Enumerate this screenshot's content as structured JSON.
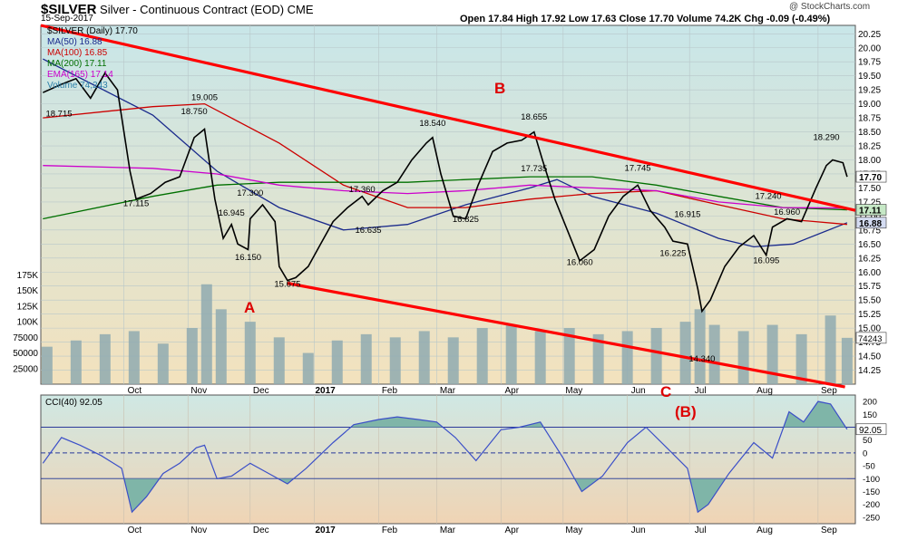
{
  "header": {
    "symbol": "$SILVER",
    "name": "Silver - Continuous Contract (EOD) CME",
    "date": "15-Sep-2017",
    "ohlc": "Open 17.84  High 17.92  Low 17.63  Close 17.70  Volume 74.2K  Chg -0.09 (-0.49%)",
    "copyright": "@ StockCharts.com"
  },
  "legend": [
    {
      "text": "$SILVER (Daily) 17.70",
      "color": "#000000"
    },
    {
      "text": "MA(50) 16.88",
      "color": "#1a2a8c"
    },
    {
      "text": "MA(100) 16.85",
      "color": "#cc0000"
    },
    {
      "text": "MA(200) 17.11",
      "color": "#007000"
    },
    {
      "text": "EMA(165) 17.14",
      "color": "#cc00cc"
    },
    {
      "text": "Volume 74,243",
      "color": "#2d7fa8"
    }
  ],
  "cci_legend": "CCI(40) 92.05",
  "annotations": {
    "B": "B",
    "A": "A",
    "C": "C",
    "Bparen": "(B)"
  },
  "price_labels": [
    {
      "text": "18.715",
      "x": "2016-08-30",
      "y": 18.715
    },
    {
      "text": "19.005",
      "x": "2016-11-09",
      "y": 19.005
    },
    {
      "text": "18.750",
      "x": "2016-11-04",
      "y": 18.75
    },
    {
      "text": "17.115",
      "x": "2016-10-07",
      "y": 17.115
    },
    {
      "text": "16.945",
      "x": "2016-11-22",
      "y": 16.945
    },
    {
      "text": "17.300",
      "x": "2016-12-01",
      "y": 17.3
    },
    {
      "text": "16.150",
      "x": "2016-11-30",
      "y": 16.15
    },
    {
      "text": "15.675",
      "x": "2016-12-19",
      "y": 15.675
    },
    {
      "text": "17.360",
      "x": "2017-01-24",
      "y": 17.36
    },
    {
      "text": "16.635",
      "x": "2017-01-27",
      "y": 16.635
    },
    {
      "text": "18.540",
      "x": "2017-02-27",
      "y": 18.54
    },
    {
      "text": "16.825",
      "x": "2017-03-15",
      "y": 16.825
    },
    {
      "text": "18.655",
      "x": "2017-04-17",
      "y": 18.655
    },
    {
      "text": "17.735",
      "x": "2017-04-17",
      "y": 17.735
    },
    {
      "text": "16.060",
      "x": "2017-05-09",
      "y": 16.06
    },
    {
      "text": "17.745",
      "x": "2017-06-06",
      "y": 17.745
    },
    {
      "text": "16.915",
      "x": "2017-06-30",
      "y": 16.915
    },
    {
      "text": "16.225",
      "x": "2017-06-23",
      "y": 16.225
    },
    {
      "text": "14.340",
      "x": "2017-07-07",
      "y": 14.34
    },
    {
      "text": "17.240",
      "x": "2017-08-08",
      "y": 17.24
    },
    {
      "text": "16.960",
      "x": "2017-08-17",
      "y": 16.96
    },
    {
      "text": "16.095",
      "x": "2017-08-07",
      "y": 16.095
    },
    {
      "text": "18.290",
      "x": "2017-09-05",
      "y": 18.29
    }
  ],
  "axis_boxes": [
    {
      "text": "17.70",
      "y": 17.7,
      "bg": "#ffffff",
      "fg": "#000000"
    },
    {
      "text": "17.11",
      "y": 17.11,
      "bg": "#c6e8c6",
      "fg": "#000000"
    },
    {
      "text": "16.88",
      "y": 16.88,
      "bg": "#d4dcf2",
      "fg": "#000000"
    }
  ],
  "volume_box": "74243",
  "cci_box": "92.05",
  "colors": {
    "price_bg_top": "#c8e6e9",
    "price_bg_bottom": "#f3e2bd",
    "cci_bg_top": "#cfe8e4",
    "cci_bg_bottom": "#f0d4b4",
    "trendline": "#ff0000",
    "volume": "#8faab0",
    "cci_line": "#3b4fc8",
    "cci_fill": "#7fb5a8"
  },
  "chart_data": [
    {
      "type": "line",
      "title": "$SILVER (Daily) 17.70",
      "x_type": "date",
      "xlim": [
        "2016-08-22",
        "2017-09-19"
      ],
      "x_tick_labels": [
        {
          "label": "Oct",
          "date": "2016-10-01"
        },
        {
          "label": "Nov",
          "date": "2016-11-01"
        },
        {
          "label": "Dec",
          "date": "2016-12-01"
        },
        {
          "label": "2017",
          "date": "2017-01-01"
        },
        {
          "label": "Feb",
          "date": "2017-02-01"
        },
        {
          "label": "Mar",
          "date": "2017-03-01"
        },
        {
          "label": "Apr",
          "date": "2017-04-01"
        },
        {
          "label": "May",
          "date": "2017-05-01"
        },
        {
          "label": "Jun",
          "date": "2017-06-01"
        },
        {
          "label": "Jul",
          "date": "2017-07-01"
        },
        {
          "label": "Aug",
          "date": "2017-08-01"
        },
        {
          "label": "Sep",
          "date": "2017-09-01"
        }
      ],
      "ylim": [
        14.0,
        20.4
      ],
      "y_ticks": [
        14.25,
        14.5,
        14.75,
        15.0,
        15.25,
        15.5,
        15.75,
        16.0,
        16.25,
        16.5,
        16.75,
        17.0,
        17.25,
        17.5,
        17.75,
        18.0,
        18.25,
        18.5,
        18.75,
        19.0,
        19.25,
        19.5,
        19.75,
        20.0,
        20.25
      ],
      "y_tick_labels": [
        "14.25",
        "14.50",
        "14.75",
        "15.00",
        "15.25",
        "15.50",
        "15.75",
        "16.00",
        "16.25",
        "16.50",
        "16.75",
        "17.00",
        "17.25",
        "17.50",
        "17.75",
        "18.00",
        "18.25",
        "18.50",
        "18.75",
        "19.00",
        "19.25",
        "19.50",
        "19.75",
        "20.00",
        "20.25"
      ],
      "price": {
        "x": [
          "2016-08-23",
          "2016-09-01",
          "2016-09-08",
          "2016-09-15",
          "2016-09-22",
          "2016-09-28",
          "2016-10-04",
          "2016-10-07",
          "2016-10-14",
          "2016-10-21",
          "2016-10-28",
          "2016-11-04",
          "2016-11-09",
          "2016-11-14",
          "2016-11-18",
          "2016-11-22",
          "2016-11-25",
          "2016-11-30",
          "2016-12-01",
          "2016-12-07",
          "2016-12-13",
          "2016-12-15",
          "2016-12-19",
          "2016-12-23",
          "2016-12-29",
          "2017-01-04",
          "2017-01-10",
          "2017-01-17",
          "2017-01-24",
          "2017-01-27",
          "2017-02-03",
          "2017-02-10",
          "2017-02-17",
          "2017-02-24",
          "2017-02-27",
          "2017-03-03",
          "2017-03-09",
          "2017-03-15",
          "2017-03-21",
          "2017-03-28",
          "2017-04-04",
          "2017-04-11",
          "2017-04-17",
          "2017-04-21",
          "2017-04-27",
          "2017-05-03",
          "2017-05-09",
          "2017-05-16",
          "2017-05-23",
          "2017-05-30",
          "2017-06-06",
          "2017-06-12",
          "2017-06-19",
          "2017-06-23",
          "2017-06-30",
          "2017-07-05",
          "2017-07-07",
          "2017-07-11",
          "2017-07-18",
          "2017-07-25",
          "2017-08-01",
          "2017-08-07",
          "2017-08-10",
          "2017-08-17",
          "2017-08-24",
          "2017-08-31",
          "2017-09-05",
          "2017-09-08",
          "2017-09-13",
          "2017-09-15"
        ],
        "y": [
          19.2,
          19.35,
          19.45,
          19.1,
          19.55,
          19.25,
          17.8,
          17.3,
          17.4,
          17.6,
          17.7,
          18.4,
          18.55,
          17.3,
          16.6,
          16.85,
          16.5,
          16.4,
          16.95,
          17.2,
          16.9,
          16.1,
          15.85,
          15.9,
          16.1,
          16.5,
          16.9,
          17.15,
          17.35,
          17.2,
          17.45,
          17.6,
          18.0,
          18.3,
          18.4,
          17.75,
          17.0,
          16.95,
          17.55,
          18.15,
          18.3,
          18.35,
          18.5,
          18.0,
          17.3,
          16.75,
          16.2,
          16.4,
          17.0,
          17.35,
          17.55,
          17.1,
          16.8,
          16.55,
          16.5,
          15.7,
          15.3,
          15.5,
          16.1,
          16.45,
          16.65,
          16.3,
          16.8,
          16.95,
          16.9,
          17.5,
          17.9,
          18.0,
          17.95,
          17.7
        ]
      },
      "series": [
        {
          "name": "MA(50) 16.88",
          "x": [
            "2016-08-23",
            "2016-10-15",
            "2016-11-15",
            "2016-12-15",
            "2017-01-15",
            "2017-02-15",
            "2017-03-15",
            "2017-04-15",
            "2017-04-28",
            "2017-05-15",
            "2017-06-15",
            "2017-07-15",
            "2017-08-01",
            "2017-08-20",
            "2017-09-15"
          ],
          "y": [
            19.8,
            18.8,
            17.8,
            17.15,
            16.75,
            16.85,
            17.2,
            17.5,
            17.65,
            17.35,
            17.05,
            16.6,
            16.45,
            16.5,
            16.88
          ]
        },
        {
          "name": "MA(100) 16.85",
          "x": [
            "2016-08-23",
            "2016-10-15",
            "2016-11-09",
            "2016-12-15",
            "2017-01-15",
            "2017-02-15",
            "2017-03-15",
            "2017-04-15",
            "2017-05-15",
            "2017-06-15",
            "2017-07-15",
            "2017-08-15",
            "2017-09-15"
          ],
          "y": [
            18.75,
            18.95,
            19.0,
            18.3,
            17.55,
            17.15,
            17.15,
            17.3,
            17.4,
            17.45,
            17.2,
            16.95,
            16.85
          ]
        },
        {
          "name": "MA(200) 17.11",
          "x": [
            "2016-08-23",
            "2016-10-15",
            "2016-11-15",
            "2016-12-15",
            "2017-01-15",
            "2017-02-15",
            "2017-03-15",
            "2017-04-15",
            "2017-05-15",
            "2017-06-15",
            "2017-07-15",
            "2017-08-15",
            "2017-09-15"
          ],
          "y": [
            16.95,
            17.35,
            17.55,
            17.6,
            17.6,
            17.6,
            17.65,
            17.7,
            17.7,
            17.55,
            17.35,
            17.15,
            17.11
          ]
        },
        {
          "name": "EMA(165) 17.14",
          "x": [
            "2016-08-23",
            "2016-10-15",
            "2016-11-15",
            "2016-12-15",
            "2017-01-15",
            "2017-02-15",
            "2017-03-15",
            "2017-04-15",
            "2017-05-15",
            "2017-06-15",
            "2017-07-15",
            "2017-08-15",
            "2017-09-15"
          ],
          "y": [
            17.9,
            17.85,
            17.75,
            17.55,
            17.45,
            17.4,
            17.45,
            17.55,
            17.5,
            17.45,
            17.25,
            17.15,
            17.14
          ]
        }
      ],
      "trendlines": [
        {
          "x": [
            "2016-08-22",
            "2017-09-19"
          ],
          "y": [
            20.4,
            17.1
          ]
        },
        {
          "x": [
            "2016-12-19",
            "2017-09-14"
          ],
          "y": [
            15.8,
            13.95
          ]
        }
      ]
    },
    {
      "type": "bar",
      "title": "Volume 74,243",
      "x_type": "date",
      "xlim": [
        "2016-08-22",
        "2017-09-19"
      ],
      "ylim": [
        0,
        180000
      ],
      "y_ticks": [
        25000,
        50000,
        75000,
        100000,
        125000,
        150000,
        175000
      ],
      "y_tick_labels": [
        "25000",
        "50000",
        "75000",
        "100K",
        "125K",
        "150K",
        "175K"
      ],
      "x": [
        "2016-08-25",
        "2016-09-08",
        "2016-09-22",
        "2016-10-06",
        "2016-10-20",
        "2016-11-03",
        "2016-11-10",
        "2016-11-17",
        "2016-12-01",
        "2016-12-15",
        "2016-12-29",
        "2017-01-12",
        "2017-01-26",
        "2017-02-09",
        "2017-02-23",
        "2017-03-09",
        "2017-03-23",
        "2017-04-06",
        "2017-04-20",
        "2017-05-04",
        "2017-05-18",
        "2017-06-01",
        "2017-06-15",
        "2017-06-29",
        "2017-07-06",
        "2017-07-13",
        "2017-07-27",
        "2017-08-10",
        "2017-08-24",
        "2017-09-07",
        "2017-09-15"
      ],
      "y": [
        60000,
        70000,
        80000,
        85000,
        65000,
        90000,
        160000,
        120000,
        100000,
        75000,
        50000,
        70000,
        80000,
        75000,
        85000,
        75000,
        90000,
        95000,
        85000,
        90000,
        80000,
        85000,
        90000,
        100000,
        120000,
        95000,
        85000,
        95000,
        80000,
        110000,
        74243
      ]
    },
    {
      "type": "line",
      "title": "CCI(40) 92.05",
      "x_type": "date",
      "xlim": [
        "2016-08-22",
        "2017-09-19"
      ],
      "ylim": [
        -275,
        225
      ],
      "y_ticks": [
        -250,
        -200,
        -150,
        -100,
        -50,
        0,
        50,
        100,
        150,
        200
      ],
      "y_tick_labels": [
        "-250",
        "-200",
        "-150",
        "-100",
        "-50",
        "0",
        "50",
        "100",
        "150",
        "200"
      ],
      "reference_lines": [
        100,
        0,
        -100
      ],
      "x": [
        "2016-08-23",
        "2016-09-01",
        "2016-09-10",
        "2016-09-20",
        "2016-09-30",
        "2016-10-05",
        "2016-10-12",
        "2016-10-20",
        "2016-10-28",
        "2016-11-05",
        "2016-11-09",
        "2016-11-15",
        "2016-11-22",
        "2016-12-01",
        "2016-12-10",
        "2016-12-19",
        "2016-12-28",
        "2017-01-10",
        "2017-01-20",
        "2017-02-01",
        "2017-02-10",
        "2017-02-20",
        "2017-03-01",
        "2017-03-10",
        "2017-03-20",
        "2017-04-01",
        "2017-04-10",
        "2017-04-20",
        "2017-05-01",
        "2017-05-10",
        "2017-05-20",
        "2017-06-01",
        "2017-06-10",
        "2017-06-20",
        "2017-06-30",
        "2017-07-05",
        "2017-07-10",
        "2017-07-20",
        "2017-08-01",
        "2017-08-10",
        "2017-08-18",
        "2017-08-25",
        "2017-09-01",
        "2017-09-07",
        "2017-09-15"
      ],
      "y": [
        -40,
        60,
        30,
        -10,
        -60,
        -230,
        -170,
        -80,
        -40,
        20,
        30,
        -100,
        -90,
        -40,
        -80,
        -120,
        -60,
        40,
        110,
        130,
        140,
        130,
        120,
        60,
        -30,
        90,
        100,
        120,
        -20,
        -150,
        -90,
        40,
        100,
        20,
        -60,
        -230,
        -200,
        -80,
        40,
        -20,
        160,
        120,
        200,
        190,
        92.05
      ]
    }
  ]
}
